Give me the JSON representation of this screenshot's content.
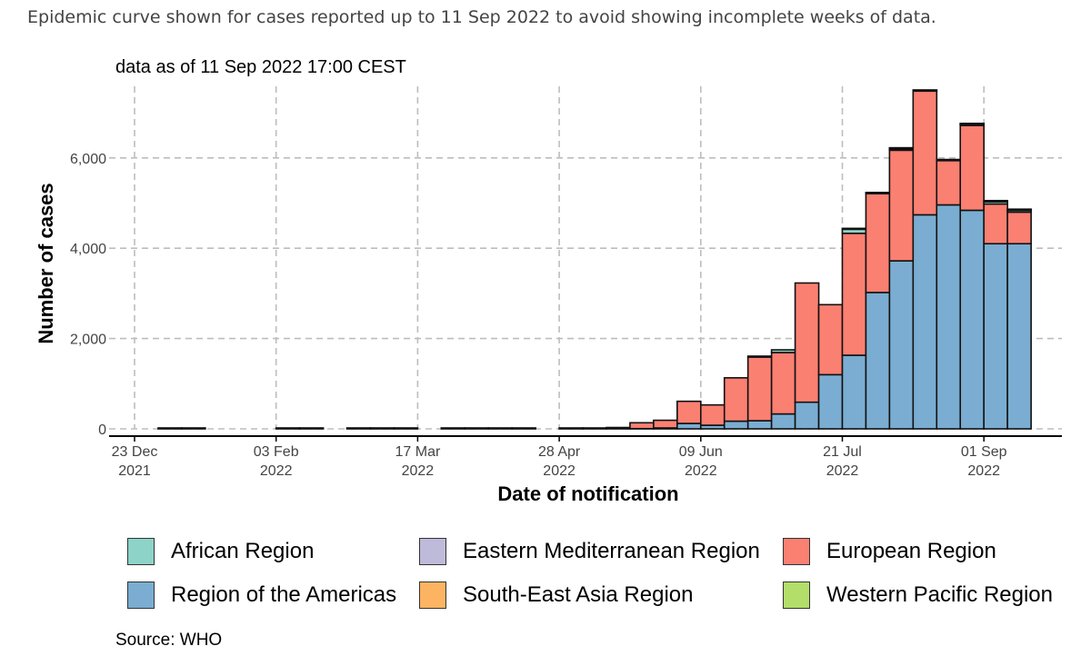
{
  "intro_text": "Epidemic curve shown for cases reported up to 11 Sep 2022 to avoid showing incomplete weeks of data.",
  "as_of": "data as of 11 Sep 2022 17:00 CEST",
  "source": "Source: WHO",
  "chart_data": {
    "type": "bar",
    "stacked": true,
    "xlabel": "Date of notification",
    "ylabel": "Number of cases",
    "ylim": [
      0,
      7500
    ],
    "y_ticks": [
      0,
      2000,
      4000,
      6000
    ],
    "y_tick_labels": [
      "0",
      "2,000",
      "4,000",
      "6,000"
    ],
    "x_ticks": [
      {
        "line1": "23 Dec",
        "line2": "2021",
        "week": 0
      },
      {
        "line1": "03 Feb",
        "line2": "2022",
        "week": 6
      },
      {
        "line1": "17 Mar",
        "line2": "2022",
        "week": 12
      },
      {
        "line1": "28 Apr",
        "line2": "2022",
        "week": 18
      },
      {
        "line1": "09 Jun",
        "line2": "2022",
        "week": 24
      },
      {
        "line1": "21 Jul",
        "line2": "2022",
        "week": 30
      },
      {
        "line1": "01 Sep",
        "line2": "2022",
        "week": 36
      }
    ],
    "grid": true,
    "legend_position": "bottom",
    "weeks": [
      1.5,
      2.5,
      6.5,
      7.5,
      9.5,
      10.5,
      11.5,
      13.5,
      14.5,
      15.5,
      16.5,
      18.5,
      19.5,
      20.5,
      21.5,
      22.5,
      23.5,
      24.5,
      25.5,
      26.5,
      27.5,
      28.5,
      29.5,
      30.5,
      31.5,
      32.5,
      33.5,
      34.5,
      35.5,
      36.5,
      37.5
    ],
    "series": [
      {
        "name": "Region of the Americas",
        "color": "#7aadd1",
        "values": [
          0,
          0,
          0,
          0,
          0,
          0,
          0,
          0,
          0,
          0,
          0,
          0,
          0,
          0,
          5,
          20,
          120,
          80,
          170,
          180,
          330,
          590,
          1200,
          1630,
          3020,
          3720,
          4740,
          4960,
          4840,
          4100,
          4100
        ]
      },
      {
        "name": "European Region",
        "color": "#fa8072",
        "values": [
          5,
          5,
          5,
          5,
          5,
          5,
          5,
          5,
          5,
          5,
          5,
          5,
          5,
          30,
          130,
          170,
          490,
          450,
          960,
          1410,
          1360,
          2640,
          1550,
          2700,
          2190,
          2450,
          2740,
          980,
          1880,
          880,
          700
        ]
      },
      {
        "name": "African Region",
        "color": "#8dd3c7",
        "values": [
          0,
          0,
          0,
          0,
          0,
          0,
          0,
          0,
          0,
          0,
          0,
          0,
          0,
          0,
          0,
          0,
          0,
          0,
          0,
          10,
          60,
          0,
          0,
          90,
          0,
          30,
          0,
          0,
          20,
          50,
          40
        ]
      },
      {
        "name": "Eastern Mediterranean Region",
        "color": "#bebada",
        "values": [
          0,
          0,
          0,
          0,
          0,
          0,
          0,
          0,
          0,
          0,
          0,
          0,
          0,
          0,
          0,
          0,
          0,
          0,
          0,
          0,
          0,
          0,
          0,
          5,
          5,
          5,
          5,
          5,
          5,
          5,
          5
        ]
      },
      {
        "name": "South-East Asia Region",
        "color": "#fdb462",
        "values": [
          0,
          0,
          0,
          0,
          0,
          0,
          0,
          0,
          0,
          0,
          0,
          0,
          0,
          0,
          0,
          0,
          0,
          0,
          0,
          0,
          0,
          0,
          0,
          0,
          0,
          0,
          0,
          0,
          0,
          0,
          0
        ]
      },
      {
        "name": "Western Pacific Region",
        "color": "#b3de69",
        "values": [
          0,
          0,
          0,
          0,
          0,
          0,
          0,
          0,
          0,
          0,
          0,
          0,
          0,
          0,
          0,
          0,
          0,
          0,
          0,
          0,
          0,
          0,
          0,
          0,
          10,
          10,
          20,
          10,
          10,
          10,
          10
        ]
      }
    ]
  },
  "legend": [
    {
      "label": "African Region",
      "color": "#8dd3c7"
    },
    {
      "label": "Eastern Mediterranean Region",
      "color": "#bebada"
    },
    {
      "label": "European Region",
      "color": "#fa8072"
    },
    {
      "label": "Region of the Americas",
      "color": "#7aadd1"
    },
    {
      "label": "South-East Asia Region",
      "color": "#fdb462"
    },
    {
      "label": "Western Pacific Region",
      "color": "#b3de69"
    }
  ]
}
